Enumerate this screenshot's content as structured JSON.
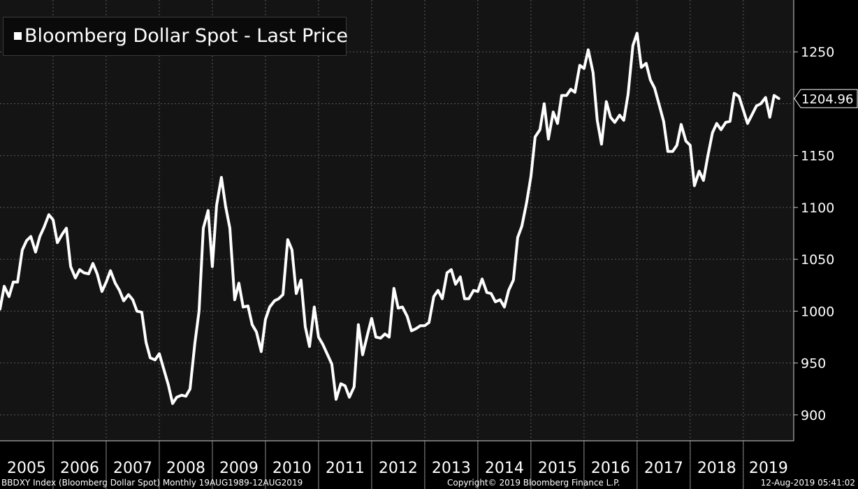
{
  "legend": {
    "label": "Bloomberg Dollar Spot - Last Price"
  },
  "last_price_label": "1204.96",
  "footer": {
    "left": "BBDXY Index (Bloomberg Dollar Spot)  Monthly 19AUG1989-12AUG2019",
    "center": "Copyright© 2019 Bloomberg Finance L.P.",
    "right": "12-Aug-2019 05:41:02"
  },
  "colors": {
    "background": "#000000",
    "plot_background": "#141414",
    "line": "#ffffff",
    "grid": "#5a5a5a"
  },
  "chart_data": {
    "type": "line",
    "title": "",
    "xlabel": "",
    "ylabel": "",
    "ylim": [
      875,
      1300
    ],
    "xlim": [
      2005.0,
      2019.95
    ],
    "yticks": [
      900,
      950,
      1000,
      1050,
      1100,
      1150,
      1250
    ],
    "xtick_labels": [
      "2005",
      "2006",
      "2007",
      "2008",
      "2009",
      "2010",
      "2011",
      "2012",
      "2013",
      "2014",
      "2015",
      "2016",
      "2017",
      "2018",
      "2019"
    ],
    "grid": true,
    "legend_position": "top-left",
    "series": [
      {
        "name": "Bloomberg Dollar Spot - Last Price",
        "last_value": 1204.96,
        "points": [
          [
            2005.0,
            1002
          ],
          [
            2005.08,
            1024
          ],
          [
            2005.17,
            1014
          ],
          [
            2005.25,
            1028
          ],
          [
            2005.33,
            1028
          ],
          [
            2005.42,
            1059
          ],
          [
            2005.5,
            1068
          ],
          [
            2005.58,
            1072
          ],
          [
            2005.67,
            1057
          ],
          [
            2005.75,
            1072
          ],
          [
            2005.83,
            1081
          ],
          [
            2005.92,
            1093
          ],
          [
            2006.0,
            1088
          ],
          [
            2006.08,
            1066
          ],
          [
            2006.17,
            1074
          ],
          [
            2006.25,
            1080
          ],
          [
            2006.33,
            1043
          ],
          [
            2006.42,
            1032
          ],
          [
            2006.5,
            1040
          ],
          [
            2006.58,
            1037
          ],
          [
            2006.67,
            1036
          ],
          [
            2006.75,
            1046
          ],
          [
            2006.83,
            1036
          ],
          [
            2006.92,
            1019
          ],
          [
            2007.0,
            1028
          ],
          [
            2007.08,
            1039
          ],
          [
            2007.17,
            1027
          ],
          [
            2007.25,
            1020
          ],
          [
            2007.33,
            1010
          ],
          [
            2007.42,
            1016
          ],
          [
            2007.5,
            1011
          ],
          [
            2007.58,
            1000
          ],
          [
            2007.67,
            999
          ],
          [
            2007.75,
            970
          ],
          [
            2007.83,
            955
          ],
          [
            2007.92,
            953
          ],
          [
            2008.0,
            959
          ],
          [
            2008.08,
            945
          ],
          [
            2008.17,
            929
          ],
          [
            2008.25,
            911
          ],
          [
            2008.33,
            917
          ],
          [
            2008.42,
            919
          ],
          [
            2008.5,
            918
          ],
          [
            2008.58,
            925
          ],
          [
            2008.67,
            969
          ],
          [
            2008.75,
            1000
          ],
          [
            2008.83,
            1080
          ],
          [
            2008.92,
            1097
          ],
          [
            2009.0,
            1043
          ],
          [
            2009.08,
            1102
          ],
          [
            2009.17,
            1129
          ],
          [
            2009.25,
            1101
          ],
          [
            2009.33,
            1080
          ],
          [
            2009.42,
            1011
          ],
          [
            2009.5,
            1027
          ],
          [
            2009.58,
            1004
          ],
          [
            2009.67,
            1005
          ],
          [
            2009.75,
            987
          ],
          [
            2009.83,
            980
          ],
          [
            2009.92,
            961
          ],
          [
            2010.0,
            992
          ],
          [
            2010.08,
            1004
          ],
          [
            2010.17,
            1010
          ],
          [
            2010.25,
            1012
          ],
          [
            2010.33,
            1016
          ],
          [
            2010.42,
            1069
          ],
          [
            2010.5,
            1059
          ],
          [
            2010.58,
            1017
          ],
          [
            2010.67,
            1030
          ],
          [
            2010.75,
            985
          ],
          [
            2010.83,
            966
          ],
          [
            2010.92,
            1004
          ],
          [
            2011.0,
            975
          ],
          [
            2011.08,
            968
          ],
          [
            2011.17,
            958
          ],
          [
            2011.25,
            949
          ],
          [
            2011.33,
            915
          ],
          [
            2011.42,
            930
          ],
          [
            2011.5,
            928
          ],
          [
            2011.58,
            917
          ],
          [
            2011.67,
            927
          ],
          [
            2011.75,
            987
          ],
          [
            2011.83,
            958
          ],
          [
            2011.92,
            977
          ],
          [
            2012.0,
            993
          ],
          [
            2012.08,
            975
          ],
          [
            2012.17,
            974
          ],
          [
            2012.25,
            978
          ],
          [
            2012.33,
            975
          ],
          [
            2012.42,
            1022
          ],
          [
            2012.5,
            1003
          ],
          [
            2012.58,
            1004
          ],
          [
            2012.67,
            995
          ],
          [
            2012.75,
            981
          ],
          [
            2012.83,
            983
          ],
          [
            2012.92,
            986
          ],
          [
            2013.0,
            986
          ],
          [
            2013.08,
            989
          ],
          [
            2013.17,
            1014
          ],
          [
            2013.25,
            1020
          ],
          [
            2013.33,
            1012
          ],
          [
            2013.42,
            1037
          ],
          [
            2013.5,
            1040
          ],
          [
            2013.58,
            1026
          ],
          [
            2013.67,
            1033
          ],
          [
            2013.75,
            1012
          ],
          [
            2013.83,
            1012
          ],
          [
            2013.92,
            1020
          ],
          [
            2014.0,
            1019
          ],
          [
            2014.08,
            1031
          ],
          [
            2014.17,
            1018
          ],
          [
            2014.25,
            1017
          ],
          [
            2014.33,
            1009
          ],
          [
            2014.42,
            1011
          ],
          [
            2014.5,
            1004
          ],
          [
            2014.58,
            1020
          ],
          [
            2014.67,
            1030
          ],
          [
            2014.75,
            1071
          ],
          [
            2014.83,
            1082
          ],
          [
            2014.92,
            1105
          ],
          [
            2015.0,
            1130
          ],
          [
            2015.08,
            1168
          ],
          [
            2015.17,
            1175
          ],
          [
            2015.25,
            1200
          ],
          [
            2015.33,
            1166
          ],
          [
            2015.42,
            1192
          ],
          [
            2015.5,
            1181
          ],
          [
            2015.58,
            1208
          ],
          [
            2015.67,
            1208
          ],
          [
            2015.75,
            1214
          ],
          [
            2015.83,
            1211
          ],
          [
            2015.92,
            1237
          ],
          [
            2016.0,
            1234
          ],
          [
            2016.08,
            1252
          ],
          [
            2016.17,
            1230
          ],
          [
            2016.25,
            1184
          ],
          [
            2016.33,
            1161
          ],
          [
            2016.42,
            1202
          ],
          [
            2016.5,
            1187
          ],
          [
            2016.58,
            1182
          ],
          [
            2016.67,
            1189
          ],
          [
            2016.75,
            1184
          ],
          [
            2016.83,
            1209
          ],
          [
            2016.92,
            1256
          ],
          [
            2017.0,
            1268
          ],
          [
            2017.08,
            1235
          ],
          [
            2017.17,
            1239
          ],
          [
            2017.25,
            1223
          ],
          [
            2017.33,
            1215
          ],
          [
            2017.42,
            1198
          ],
          [
            2017.5,
            1183
          ],
          [
            2017.58,
            1154
          ],
          [
            2017.67,
            1154
          ],
          [
            2017.75,
            1160
          ],
          [
            2017.83,
            1180
          ],
          [
            2017.92,
            1164
          ],
          [
            2018.0,
            1160
          ],
          [
            2018.08,
            1121
          ],
          [
            2018.17,
            1135
          ],
          [
            2018.25,
            1126
          ],
          [
            2018.33,
            1149
          ],
          [
            2018.42,
            1172
          ],
          [
            2018.5,
            1181
          ],
          [
            2018.58,
            1175
          ],
          [
            2018.67,
            1182
          ],
          [
            2018.75,
            1183
          ],
          [
            2018.83,
            1210
          ],
          [
            2018.92,
            1207
          ],
          [
            2019.0,
            1194
          ],
          [
            2019.08,
            1181
          ],
          [
            2019.17,
            1190
          ],
          [
            2019.25,
            1198
          ],
          [
            2019.33,
            1200
          ],
          [
            2019.42,
            1206
          ],
          [
            2019.5,
            1187
          ],
          [
            2019.58,
            1208
          ],
          [
            2019.67,
            1205
          ]
        ]
      }
    ]
  }
}
